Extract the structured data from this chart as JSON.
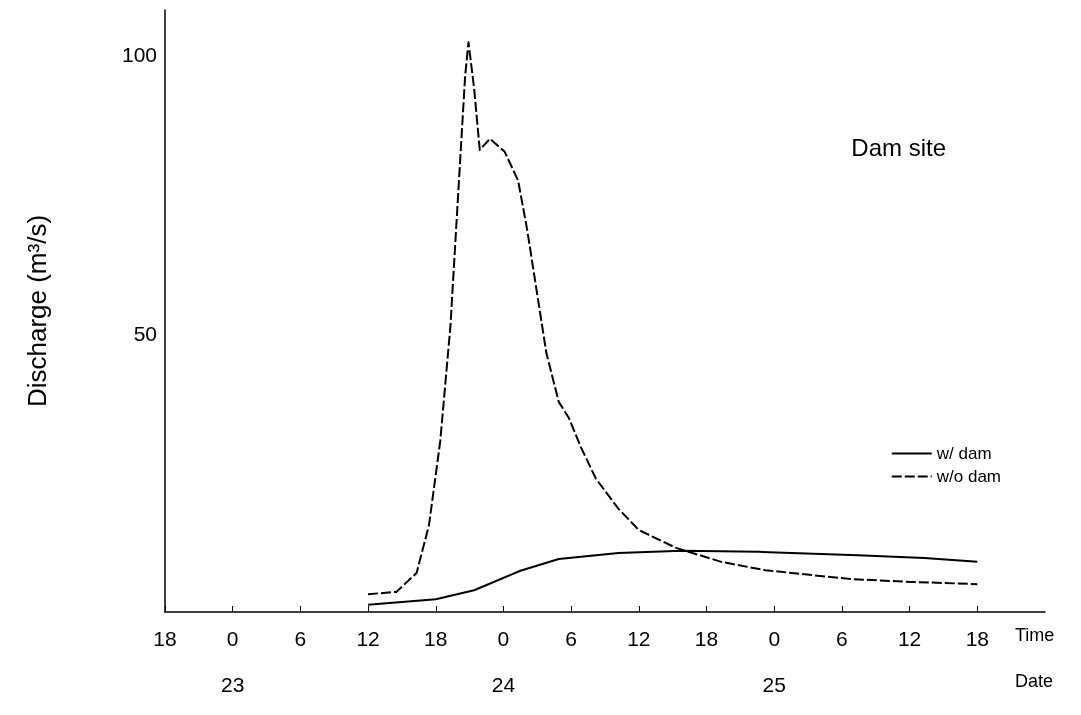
{
  "chart_data": {
    "type": "line",
    "title": "Dam site",
    "ylabel": "Discharge (m³/s)",
    "xlabel": "Time",
    "xlim": [
      "--01-22T18:00",
      "--01-26T00:00"
    ],
    "xticks": [
      {
        "value": "--01-22T18:00",
        "label": "18"
      },
      {
        "value": "--01-23T00:00",
        "label": "0"
      },
      {
        "value": "--01-23T06:00",
        "label": "6"
      },
      {
        "value": "--01-23T12:00",
        "label": "12"
      },
      {
        "value": "--01-23T18:00",
        "label": "18"
      },
      {
        "value": "--01-24T00:00",
        "label": "0"
      },
      {
        "value": "--01-24T06:00",
        "label": "6"
      },
      {
        "value": "--01-24T12:00",
        "label": "12"
      },
      {
        "value": "--01-24T18:00",
        "label": "18"
      },
      {
        "value": "--01-25T00:00",
        "label": "0"
      },
      {
        "value": "--01-25T06:00",
        "label": "6"
      },
      {
        "value": "--01-25T12:00",
        "label": "12"
      },
      {
        "value": "--01-25T18:00",
        "label": "18"
      }
    ],
    "x2label": "Date",
    "x2lim": [
      "--01-22T18:00",
      "--01-26T00:00"
    ],
    "x2ticks": [
      {
        "value": "--01-23T00:00",
        "label": "23"
      },
      {
        "value": "--01-24T00:00",
        "label": "24"
      },
      {
        "value": "--01-25T00:00",
        "label": "25"
      }
    ],
    "ylim": [
      0,
      108
    ],
    "yticks": [
      50,
      100
    ],
    "legend": "right",
    "series": [
      {
        "name": "w/ dam",
        "color": "#000000",
        "line_style": "solid",
        "x": [
          "--01-23T12:00",
          "--01-23T18:00",
          "--01-23T21:24",
          "--01-24T01:30",
          "--01-24T04:54",
          "--01-24T10:12",
          "--01-24T15:48",
          "--01-24T22:36",
          "--01-25T07:24",
          "--01-25T13:18",
          "--01-25T18:00"
        ],
        "values": [
          1.3,
          2.3,
          3.9,
          7.4,
          9.5,
          10.6,
          11.0,
          10.8,
          10.2,
          9.7,
          9.0
        ]
      },
      {
        "name": "w/o dam",
        "color": "#000000",
        "line_style": "dashed",
        "x": [
          "--01-23T12:00",
          "--01-23T14:30",
          "--01-23T16:18",
          "--01-23T17:24",
          "--01-23T18:24",
          "--01-23T19:18",
          "--01-23T19:54",
          "--01-23T20:36",
          "--01-23T20:54",
          "--01-23T21:24",
          "--01-23T21:54",
          "--01-23T22:48",
          "--01-24T00:06",
          "--01-24T01:18",
          "--01-24T02:06",
          "--01-24T03:00",
          "--01-24T03:48",
          "--01-24T04:54",
          "--01-24T05:48",
          "--01-24T06:54",
          "--01-24T08:12",
          "--01-24T10:12",
          "--01-24T12:00",
          "--01-24T15:18",
          "--01-24T19:18",
          "--01-24T23:12",
          "--01-25T06:48",
          "--01-25T12:06",
          "--01-25T18:00"
        ],
        "values": [
          3.2,
          3.6,
          7.0,
          15.6,
          30.7,
          51.3,
          72.0,
          96.1,
          102.2,
          93.9,
          82.9,
          84.9,
          82.6,
          77.4,
          68.6,
          56.9,
          46.5,
          37.7,
          34.8,
          29.4,
          23.9,
          18.5,
          14.7,
          11.5,
          9.0,
          7.5,
          5.9,
          5.4,
          5.0
        ]
      }
    ]
  }
}
